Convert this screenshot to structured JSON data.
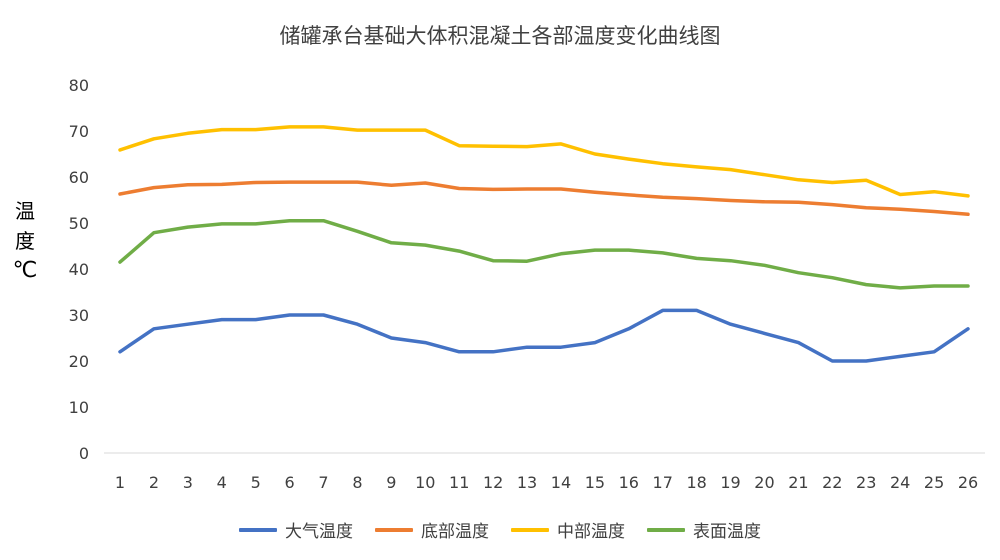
{
  "chart_data": {
    "type": "line",
    "title": "储罐承台基础大体积混凝土各部温度变化曲线图",
    "ylabel_chars": [
      "温",
      "度"
    ],
    "ylabel_unit": "℃",
    "xlabel": "",
    "x": [
      1,
      2,
      3,
      4,
      5,
      6,
      7,
      8,
      9,
      10,
      11,
      12,
      13,
      14,
      15,
      16,
      17,
      18,
      19,
      20,
      21,
      22,
      23,
      24,
      25,
      26
    ],
    "ylim": [
      0,
      80
    ],
    "yticks": [
      0,
      10,
      20,
      30,
      40,
      50,
      60,
      70,
      80
    ],
    "grid": false,
    "legend_position": "bottom",
    "series": [
      {
        "name": "大气温度",
        "color": "#4472C4",
        "values": [
          22,
          27,
          28,
          29,
          29,
          30,
          30,
          28,
          25,
          24,
          22,
          22,
          23,
          23,
          24,
          27,
          31,
          31,
          28,
          26,
          24,
          20,
          20,
          21,
          22,
          27
        ]
      },
      {
        "name": "底部温度",
        "color": "#ED7D31",
        "values": [
          56.3,
          57.7,
          58.3,
          58.4,
          58.8,
          58.9,
          58.9,
          58.9,
          58.2,
          58.7,
          57.5,
          57.3,
          57.4,
          57.4,
          56.7,
          56.1,
          55.6,
          55.3,
          54.9,
          54.6,
          54.5,
          54.0,
          53.3,
          53.0,
          52.5,
          51.9
        ]
      },
      {
        "name": "中部温度",
        "color": "#FFC000",
        "values": [
          65.9,
          68.3,
          69.5,
          70.3,
          70.3,
          70.9,
          70.9,
          70.2,
          70.2,
          70.2,
          66.8,
          66.7,
          66.6,
          67.2,
          65.0,
          63.9,
          62.9,
          62.2,
          61.6,
          60.5,
          59.4,
          58.8,
          59.3,
          56.2,
          56.8,
          55.9
        ]
      },
      {
        "name": "表面温度",
        "color": "#70AD47",
        "values": [
          41.5,
          47.9,
          49.1,
          49.8,
          49.8,
          50.5,
          50.5,
          48.2,
          45.7,
          45.2,
          43.9,
          41.8,
          41.7,
          43.3,
          44.1,
          44.1,
          43.5,
          42.3,
          41.8,
          40.8,
          39.2,
          38.1,
          36.6,
          35.9,
          36.3,
          36.3
        ]
      }
    ]
  }
}
